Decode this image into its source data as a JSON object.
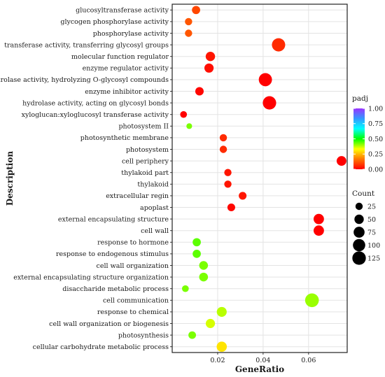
{
  "chart_data": {
    "type": "scatter",
    "xlabel": "GeneRatio",
    "ylabel": "Description",
    "xlim": [
      0.0,
      0.077
    ],
    "xticks": [
      0.02,
      0.04,
      0.06
    ],
    "xtick_labels": [
      "0.02",
      "0.04",
      "0.06"
    ],
    "grid": true,
    "legend_position": "right",
    "color_legend": {
      "title": "padj",
      "min": 0.0,
      "max": 1.0,
      "ticks": [
        1.0,
        0.75,
        0.5,
        0.25,
        0.0
      ],
      "tick_labels": [
        "1.00",
        "0.75",
        "0.50",
        "0.25",
        "0.00"
      ],
      "colors": [
        "#ff0000",
        "#ff7700",
        "#ffff00",
        "#00ff00",
        "#00ffff",
        "#3399ff",
        "#9933ff"
      ]
    },
    "size_legend": {
      "title": "Count",
      "values": [
        25,
        50,
        75,
        100,
        125
      ],
      "labels": [
        "25",
        "50",
        "75",
        "100",
        "125"
      ]
    },
    "points": [
      {
        "term": "glucosyltransferase activity",
        "gene_ratio": 0.0105,
        "count": 35,
        "padj": 0.1
      },
      {
        "term": "glycogen phosphorylase activity",
        "gene_ratio": 0.0072,
        "count": 25,
        "padj": 0.12
      },
      {
        "term": "phosphorylase activity",
        "gene_ratio": 0.0072,
        "count": 25,
        "padj": 0.12
      },
      {
        "term": "transferase activity, transferring glycosyl groups",
        "gene_ratio": 0.0468,
        "count": 120,
        "padj": 0.06
      },
      {
        "term": "molecular function regulator",
        "gene_ratio": 0.0168,
        "count": 50,
        "padj": 0.03
      },
      {
        "term": "enzyme regulator activity",
        "gene_ratio": 0.0162,
        "count": 48,
        "padj": 0.02
      },
      {
        "term": "hydrolase activity, hydrolyzing O-glycosyl compounds",
        "gene_ratio": 0.041,
        "count": 118,
        "padj": 0.0
      },
      {
        "term": "enzyme inhibitor activity",
        "gene_ratio": 0.012,
        "count": 38,
        "padj": 0.01
      },
      {
        "term": "hydrolase activity, acting on glycosyl bonds",
        "gene_ratio": 0.0428,
        "count": 122,
        "padj": 0.0
      },
      {
        "term": "xyloglucan:xyloglucosyl transferase activity",
        "gene_ratio": 0.005,
        "count": 20,
        "padj": 0.0
      },
      {
        "term": "photosystem II",
        "gene_ratio": 0.0075,
        "count": 12,
        "padj": 0.42
      },
      {
        "term": "photosynthetic membrane",
        "gene_ratio": 0.0225,
        "count": 25,
        "padj": 0.06
      },
      {
        "term": "photosystem",
        "gene_ratio": 0.0225,
        "count": 25,
        "padj": 0.06
      },
      {
        "term": "cell periphery",
        "gene_ratio": 0.0745,
        "count": 55,
        "padj": 0.0
      },
      {
        "term": "thylakoid part",
        "gene_ratio": 0.0245,
        "count": 25,
        "padj": 0.03
      },
      {
        "term": "thylakoid",
        "gene_ratio": 0.0245,
        "count": 25,
        "padj": 0.03
      },
      {
        "term": "extracellular regin",
        "gene_ratio": 0.031,
        "count": 30,
        "padj": 0.03
      },
      {
        "term": "apoplast",
        "gene_ratio": 0.026,
        "count": 30,
        "padj": 0.01
      },
      {
        "term": "external encapsulating structure",
        "gene_ratio": 0.0645,
        "count": 65,
        "padj": 0.0
      },
      {
        "term": "cell wall",
        "gene_ratio": 0.0645,
        "count": 65,
        "padj": 0.0
      },
      {
        "term": "response to hormone",
        "gene_ratio": 0.0108,
        "count": 35,
        "padj": 0.44
      },
      {
        "term": "response to endogenous stimulus",
        "gene_ratio": 0.0108,
        "count": 35,
        "padj": 0.44
      },
      {
        "term": "cell wall organization",
        "gene_ratio": 0.0138,
        "count": 42,
        "padj": 0.42
      },
      {
        "term": "external encapsulating structure organization",
        "gene_ratio": 0.0138,
        "count": 42,
        "padj": 0.42
      },
      {
        "term": "disaccharide metabolic process",
        "gene_ratio": 0.0058,
        "count": 20,
        "padj": 0.42
      },
      {
        "term": "cell communication",
        "gene_ratio": 0.0615,
        "count": 130,
        "padj": 0.4
      },
      {
        "term": "response to chemical",
        "gene_ratio": 0.0218,
        "count": 58,
        "padj": 0.38
      },
      {
        "term": "cell wall organization or biogenesis",
        "gene_ratio": 0.0168,
        "count": 48,
        "padj": 0.36
      },
      {
        "term": "photosynthesis",
        "gene_ratio": 0.0088,
        "count": 28,
        "padj": 0.42
      },
      {
        "term": "cellular carbohydrate metabolic process",
        "gene_ratio": 0.0218,
        "count": 62,
        "padj": 0.3
      }
    ]
  }
}
